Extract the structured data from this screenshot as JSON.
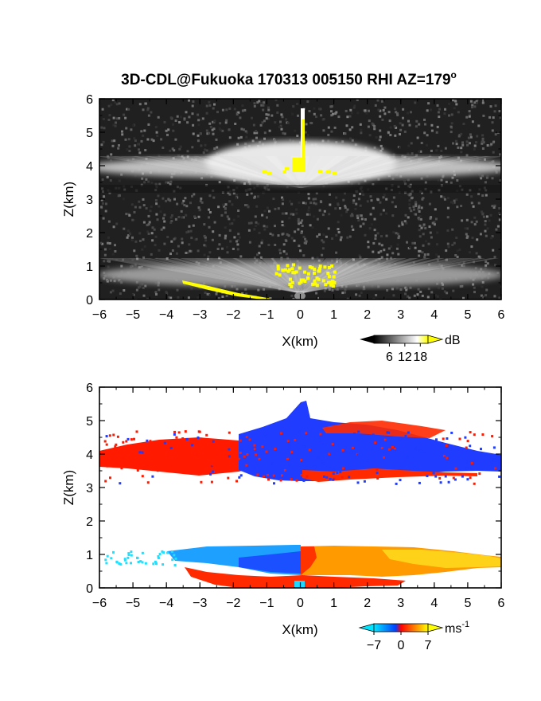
{
  "figure": {
    "title": "3D-CDL@Fukuoka 170313 005150 RHI AZ=179",
    "title_degree": "o"
  },
  "chart_data": [
    {
      "type": "heatmap",
      "panel": "top",
      "quantity": "SNR",
      "xlabel": "X(km)",
      "ylabel": "Z(km)",
      "xlim": [
        -6,
        6
      ],
      "ylim": [
        0,
        6
      ],
      "xticks": [
        -6,
        -5,
        -4,
        -3,
        -2,
        -1,
        0,
        1,
        2,
        3,
        4,
        5,
        6
      ],
      "yticks": [
        0,
        1,
        2,
        3,
        4,
        5,
        6
      ],
      "colorbar": {
        "unit": "dB",
        "ticks": [
          6,
          12,
          18
        ],
        "range": [
          0,
          21
        ],
        "colors": [
          "#000000",
          "#ffffff",
          "#ffff00"
        ]
      },
      "layers": [
        {
          "name": "upper cloud layer",
          "z_base_km": 3.6,
          "z_top_km": 4.2,
          "x_range_km": [
            -6,
            6
          ],
          "peak_db": 17
        },
        {
          "name": "lower fan layer",
          "z_base_km": 0.2,
          "z_top_km": 1.2,
          "x_range_km": [
            -6,
            6
          ],
          "peak_db": 16
        },
        {
          "name": "vertical spike",
          "x_km": 0.1,
          "z_range_km": [
            4.0,
            5.7
          ]
        }
      ],
      "saturated_regions": [
        {
          "x_range_km": [
            -0.15,
            0.25
          ],
          "z_range_km": [
            3.7,
            5.0
          ]
        },
        {
          "x_range_km": [
            -0.8,
            1.0
          ],
          "z_range_km": [
            0.5,
            1.0
          ]
        },
        {
          "x_range_km": [
            -3.5,
            -1.0
          ],
          "z_range_km": [
            0.0,
            0.5
          ]
        }
      ]
    },
    {
      "type": "heatmap",
      "panel": "bottom",
      "quantity": "Doppler velocity",
      "xlabel": "X(km)",
      "ylabel": "Z(km)",
      "xlim": [
        -6,
        6
      ],
      "ylim": [
        0,
        6
      ],
      "xticks": [
        -6,
        -5,
        -4,
        -3,
        -2,
        -1,
        0,
        1,
        2,
        3,
        4,
        5,
        6
      ],
      "yticks": [
        0,
        1,
        2,
        3,
        4,
        5,
        6
      ],
      "colorbar": {
        "unit": "ms",
        "unit_sup": "-1",
        "ticks": [
          -7,
          0,
          7
        ],
        "range": [
          -7,
          7
        ],
        "colors": [
          "#00e5ff",
          "#0040ff",
          "#ff0000",
          "#ff8000",
          "#ffff00"
        ]
      },
      "regions": [
        {
          "name": "upper layer positive",
          "x_range_km": [
            -6,
            -0.5
          ],
          "z_range_km": [
            3.5,
            4.5
          ],
          "velocity_ms": 4
        },
        {
          "name": "upper layer negative",
          "x_range_km": [
            -0.5,
            6
          ],
          "z_range_km": [
            3.4,
            5.6
          ],
          "velocity_ms": -5
        },
        {
          "name": "lower layer negative",
          "x_range_km": [
            -6,
            0
          ],
          "z_range_km": [
            0.7,
            1.3
          ],
          "velocity_ms": -6
        },
        {
          "name": "lower layer positive",
          "x_range_km": [
            0,
            6
          ],
          "z_range_km": [
            0.6,
            1.2
          ],
          "velocity_ms": 5
        },
        {
          "name": "near-surface positive",
          "x_range_km": [
            -3.5,
            3.2
          ],
          "z_range_km": [
            0.0,
            0.5
          ],
          "velocity_ms": 3
        }
      ]
    }
  ]
}
